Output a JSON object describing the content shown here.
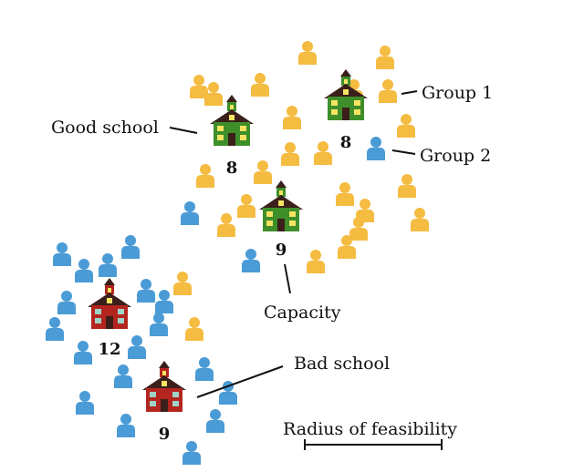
{
  "colors": {
    "group1": "#F5BC42",
    "group2": "#4A9BD6",
    "good_school": "#3E8E2A",
    "bad_school": "#B3251E",
    "roof": "#3A1F1A",
    "window": "#F7E463"
  },
  "labels": {
    "good_school": "Good school",
    "bad_school": "Bad school",
    "group1": "Group 1",
    "group2": "Group 2",
    "capacity": "Capacity",
    "radius": "Radius of feasibility"
  },
  "schools": [
    {
      "quality": "good",
      "capacity": "8"
    },
    {
      "quality": "good",
      "capacity": "8"
    },
    {
      "quality": "good",
      "capacity": "9"
    },
    {
      "quality": "bad",
      "capacity": "12"
    },
    {
      "quality": "bad",
      "capacity": "9"
    }
  ],
  "people": {
    "group1_count": 24,
    "group2_count": 21
  }
}
